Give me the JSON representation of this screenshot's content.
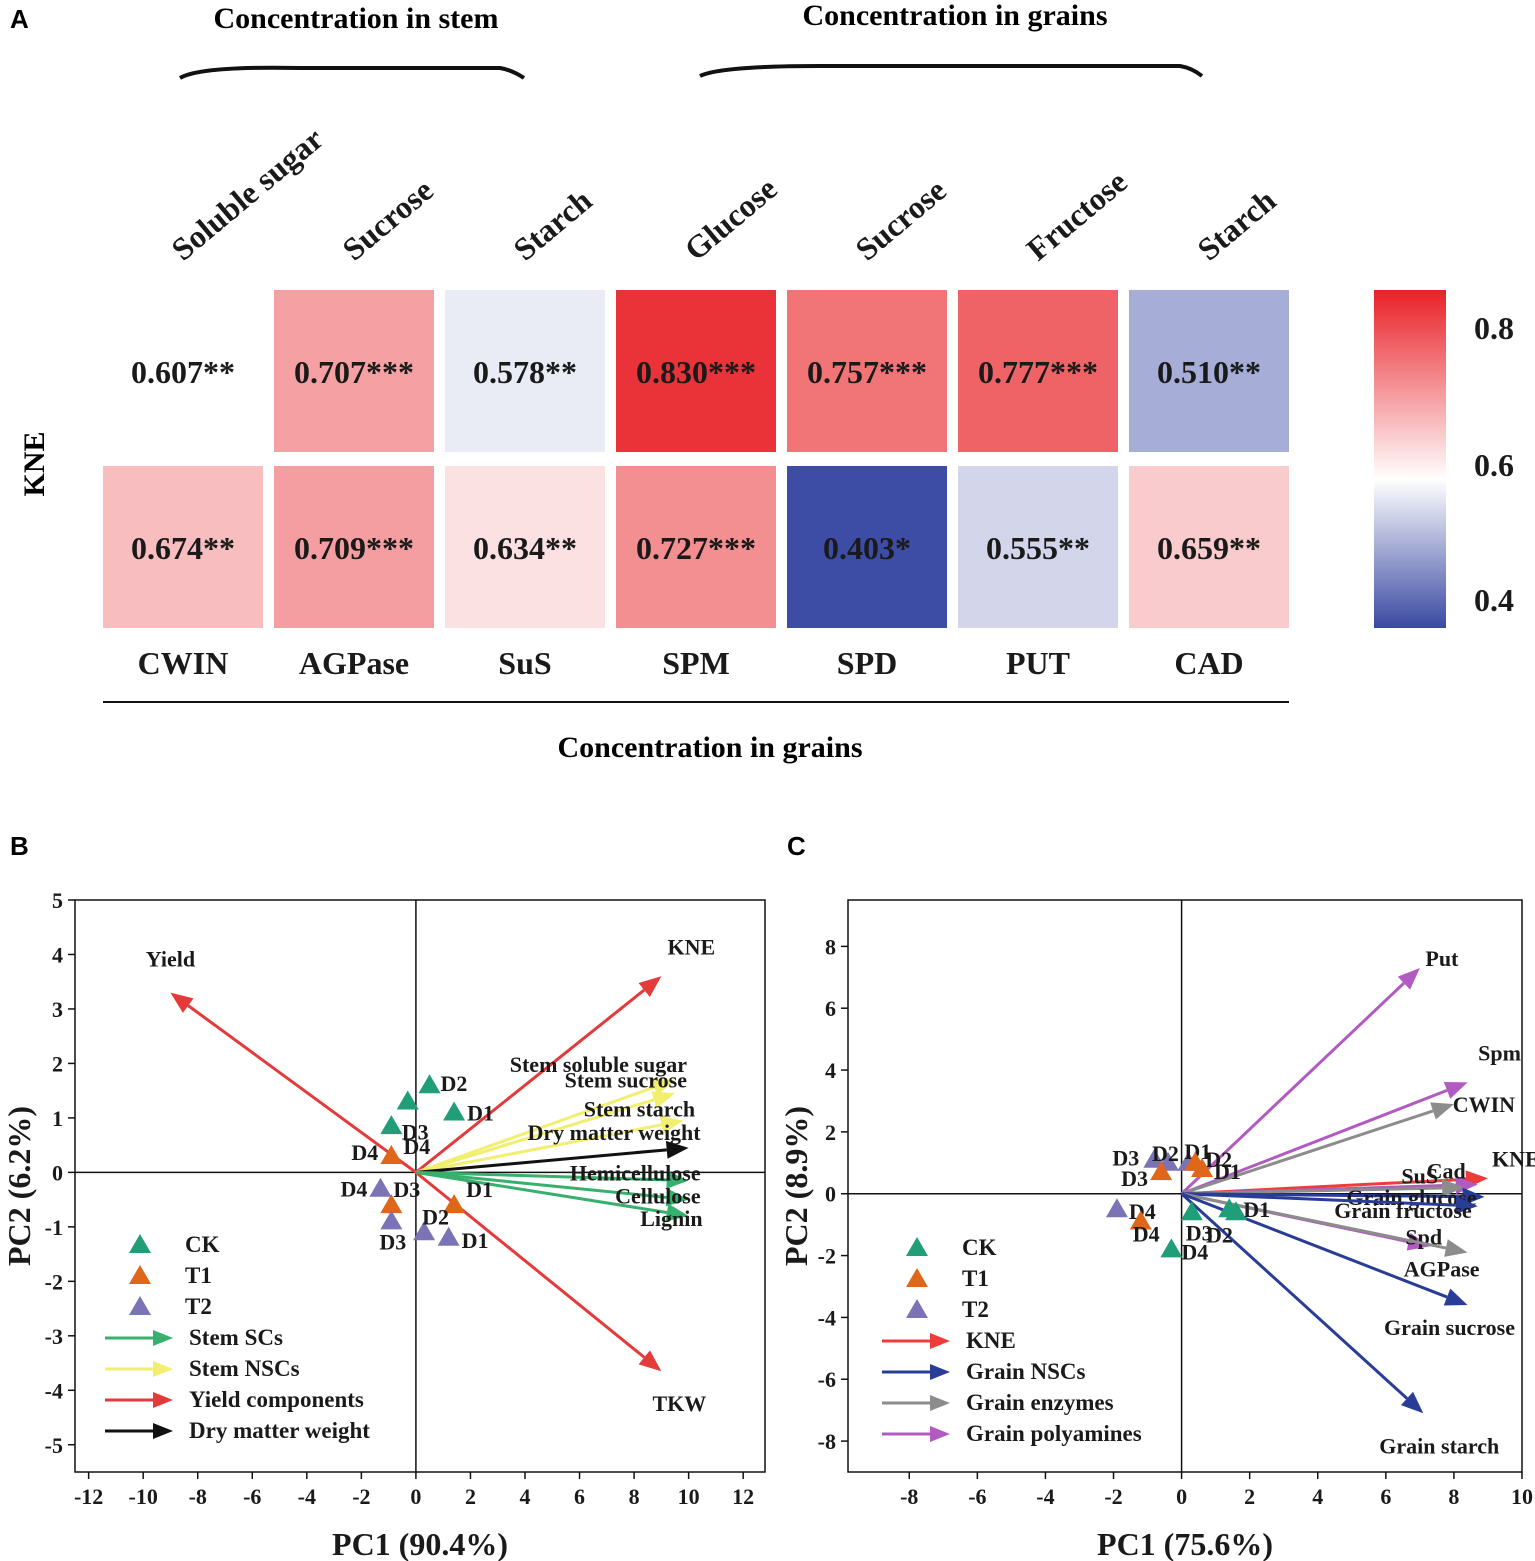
{
  "panels": {
    "a": "A",
    "b": "B",
    "c": "C"
  },
  "heatmap": {
    "group_header_left": "Concentration in stem",
    "group_header_right": "Concentration  in grains",
    "bottom_label": "Concentration  in grains",
    "row_label": "KNE",
    "columns_top": [
      "Soluble sugar",
      "Sucrose",
      "Starch",
      "Glucose",
      "Sucrose",
      "Fructose",
      "Starch"
    ],
    "columns_bottom": [
      "CWIN",
      "AGPase",
      "SuS",
      "SPM",
      "SPD",
      "PUT",
      "CAD"
    ],
    "row1": [
      {
        "value": 0.607,
        "text": "0.607**",
        "colored": false
      },
      {
        "value": 0.707,
        "text": "0.707***",
        "colored": true
      },
      {
        "value": 0.578,
        "text": "0.578**",
        "colored": true
      },
      {
        "value": 0.83,
        "text": "0.830***",
        "colored": true
      },
      {
        "value": 0.757,
        "text": "0.757***",
        "colored": true
      },
      {
        "value": 0.777,
        "text": "0.777***",
        "colored": true
      },
      {
        "value": 0.51,
        "text": "0.510**",
        "colored": true
      }
    ],
    "row2": [
      {
        "value": 0.674,
        "text": "0.674**",
        "colored": true
      },
      {
        "value": 0.709,
        "text": "0.709***",
        "colored": true
      },
      {
        "value": 0.634,
        "text": "0.634**",
        "colored": true
      },
      {
        "value": 0.727,
        "text": "0.727***",
        "colored": true
      },
      {
        "value": 0.403,
        "text": "0.403*",
        "colored": true
      },
      {
        "value": 0.555,
        "text": "0.555**",
        "colored": true
      },
      {
        "value": 0.659,
        "text": "0.659**",
        "colored": true
      }
    ],
    "colorbar": {
      "ticks": [
        "0.8",
        "0.6",
        "0.4"
      ],
      "min": 0.4,
      "mid": 0.6,
      "max": 0.85,
      "colors": {
        "low": "#3a49a3",
        "mid": "#ffffff",
        "high": "#e82127"
      }
    }
  },
  "chart_data": [
    {
      "type": "heatmap",
      "rows": [
        "KNE"
      ],
      "x_top": [
        "Soluble sugar",
        "Sucrose",
        "Starch",
        "Glucose",
        "Sucrose",
        "Fructose",
        "Starch"
      ],
      "x_bottom": [
        "CWIN",
        "AGPase",
        "SuS",
        "SPM",
        "SPD",
        "PUT",
        "CAD"
      ],
      "values_top": [
        0.607,
        0.707,
        0.578,
        0.83,
        0.757,
        0.777,
        0.51
      ],
      "values_bottom": [
        0.674,
        0.709,
        0.634,
        0.727,
        0.403,
        0.555,
        0.659
      ]
    },
    {
      "type": "scatter",
      "title": "B",
      "xlabel": "PC1 (90.4%)",
      "ylabel": "PC2 (6.2%)",
      "xlim": [
        -12.5,
        12.8
      ],
      "ylim": [
        -5.5,
        5
      ],
      "xticks": [
        -12,
        -10,
        -8,
        -6,
        -4,
        -2,
        0,
        2,
        4,
        6,
        8,
        10,
        12
      ],
      "yticks": [
        5,
        4,
        3,
        2,
        1,
        0,
        -1,
        -2,
        -3,
        -4,
        -5
      ],
      "points": [
        {
          "group": "CK",
          "label": "D2",
          "x": 0.5,
          "y": 1.6
        },
        {
          "group": "CK",
          "label": "D3",
          "x": -0.3,
          "y": 1.3
        },
        {
          "group": "CK",
          "label": "D1",
          "x": 1.4,
          "y": 1.1
        },
        {
          "group": "CK",
          "label": "D4",
          "x": -0.9,
          "y": 0.85
        },
        {
          "group": "T1",
          "label": "D4",
          "x": -0.9,
          "y": 0.3
        },
        {
          "group": "T1",
          "label": "D3",
          "x": -0.9,
          "y": -0.6
        },
        {
          "group": "T1",
          "label": "D1",
          "x": 1.4,
          "y": -0.6
        },
        {
          "group": "T2",
          "label": "D4",
          "x": -1.3,
          "y": -0.3
        },
        {
          "group": "T2",
          "label": "D3",
          "x": -0.9,
          "y": -0.9
        },
        {
          "group": "T2",
          "label": "D2",
          "x": 0.3,
          "y": -1.1
        },
        {
          "group": "T2",
          "label": "D1",
          "x": 1.2,
          "y": -1.2
        }
      ],
      "arrows": [
        {
          "label": "Yield",
          "x": -9,
          "y": 3.3,
          "kind": "yield"
        },
        {
          "label": "KNE",
          "x": 9,
          "y": 3.6,
          "kind": "yield"
        },
        {
          "label": "TKW",
          "x": 9,
          "y": -3.65,
          "kind": "yield"
        },
        {
          "label": "Stem soluble sugar",
          "x": 9.5,
          "y": 1.7,
          "kind": "nsc"
        },
        {
          "label": "Stem sucrose",
          "x": 9.5,
          "y": 1.45,
          "kind": "nsc"
        },
        {
          "label": "Stem starch",
          "x": 9.8,
          "y": 0.95,
          "kind": "nsc"
        },
        {
          "label": "Dry matter weight",
          "x": 10,
          "y": 0.45,
          "kind": "dmw"
        },
        {
          "label": "Hemicellulose",
          "x": 10,
          "y": -0.15,
          "kind": "sc"
        },
        {
          "label": "Cellulose",
          "x": 10,
          "y": -0.5,
          "kind": "sc"
        },
        {
          "label": "Lignin",
          "x": 10,
          "y": -0.8,
          "kind": "sc"
        }
      ],
      "legend": [
        "CK",
        "T1",
        "T2",
        "Stem SCs",
        "Stem NSCs",
        "Yield components",
        "Dry matter weight"
      ]
    },
    {
      "type": "scatter",
      "title": "C",
      "xlabel": "PC1 (75.6%)",
      "ylabel": "PC2 (8.9%)",
      "xlim": [
        -9.8,
        10
      ],
      "ylim": [
        -9,
        9.5
      ],
      "xticks": [
        -8,
        -6,
        -4,
        -2,
        0,
        2,
        4,
        6,
        8,
        10
      ],
      "yticks": [
        8,
        6,
        4,
        2,
        0,
        -2,
        -4,
        -6,
        -8
      ],
      "points": [
        {
          "group": "T2",
          "label": "D3",
          "x": -0.8,
          "y": 1.1
        },
        {
          "group": "T2",
          "label": "D2",
          "x": -0.4,
          "y": 1.0
        },
        {
          "group": "T2",
          "label": "D1",
          "x": 0.2,
          "y": 1.0
        },
        {
          "group": "T1",
          "label": "D2",
          "x": 0.4,
          "y": 1.0
        },
        {
          "group": "T1",
          "label": "D1",
          "x": 0.6,
          "y": 0.8
        },
        {
          "group": "T1",
          "label": "D3",
          "x": -0.6,
          "y": 0.7
        },
        {
          "group": "T2",
          "label": "D4",
          "x": -1.9,
          "y": -0.5
        },
        {
          "group": "T1",
          "label": "D4",
          "x": -1.2,
          "y": -0.9
        },
        {
          "group": "CK",
          "label": "D3",
          "x": 0.3,
          "y": -0.6
        },
        {
          "group": "CK",
          "label": "D1",
          "x": 1.4,
          "y": -0.5
        },
        {
          "group": "CK",
          "label": "D2",
          "x": 1.6,
          "y": -0.6
        },
        {
          "group": "CK",
          "label": "D4",
          "x": -0.3,
          "y": -1.8
        }
      ],
      "arrows": [
        {
          "label": "Put",
          "x": 7,
          "y": 7.3,
          "kind": "polyamine"
        },
        {
          "label": "Spm",
          "x": 8.4,
          "y": 3.6,
          "kind": "polyamine"
        },
        {
          "label": "CWIN",
          "x": 8,
          "y": 2.9,
          "kind": "enzyme"
        },
        {
          "label": "KNE",
          "x": 9,
          "y": 0.5,
          "kind": "kne"
        },
        {
          "label": "Cad",
          "x": 8.7,
          "y": 0.3,
          "kind": "polyamine"
        },
        {
          "label": "SuS",
          "x": 8.3,
          "y": 0.2,
          "kind": "enzyme"
        },
        {
          "label": "Grain glucose",
          "x": 8.9,
          "y": -0.1,
          "kind": "nsc"
        },
        {
          "label": "Grain fructose",
          "x": 8.7,
          "y": -0.4,
          "kind": "nsc"
        },
        {
          "label": "Spd",
          "x": 7.3,
          "y": -1.7,
          "kind": "polyamine"
        },
        {
          "label": "AGPase",
          "x": 8.4,
          "y": -1.9,
          "kind": "enzyme"
        },
        {
          "label": "Grain sucrose",
          "x": 8.4,
          "y": -3.6,
          "kind": "nsc"
        },
        {
          "label": "Grain starch",
          "x": 7.1,
          "y": -7.1,
          "kind": "nsc"
        }
      ],
      "legend": [
        "CK",
        "T1",
        "T2",
        "KNE",
        "Grain NSCs",
        "Grain enzymes",
        "Grain polyamines"
      ]
    }
  ],
  "colors": {
    "ck": "#1f9e78",
    "t1": "#e0661a",
    "t2": "#7a74b6",
    "yield": "#e43a3a",
    "nsc_stem": "#f2ee6e",
    "sc_stem": "#36b06c",
    "dmw": "#111111",
    "kne": "#ee3c3c",
    "nsc_grain": "#2a3d96",
    "enzyme": "#8c8c8c",
    "polyamine": "#b15bc0"
  }
}
